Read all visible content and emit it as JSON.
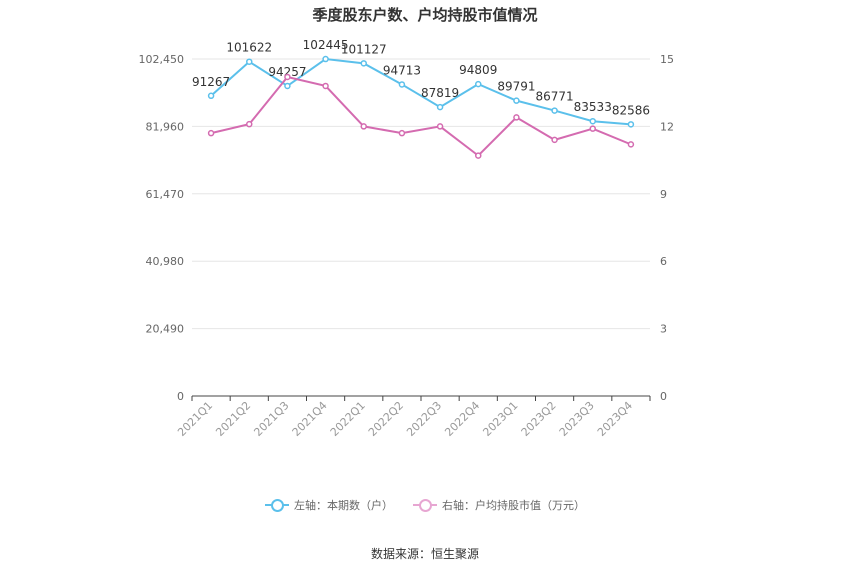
{
  "chart_data": {
    "type": "line",
    "title": "季度股东户数、户均持股市值情况",
    "categories": [
      "2021Q1",
      "2021Q2",
      "2021Q3",
      "2021Q4",
      "2022Q1",
      "2022Q2",
      "2022Q3",
      "2022Q4",
      "2023Q1",
      "2023Q2",
      "2023Q3",
      "2023Q4"
    ],
    "left_axis": {
      "ticks": [
        "0",
        "20,490",
        "40,980",
        "61,470",
        "81,960",
        "102,450"
      ],
      "ylim": [
        0,
        102450
      ]
    },
    "right_axis": {
      "ticks": [
        "0",
        "3",
        "6",
        "9",
        "12",
        "15"
      ],
      "ylim": [
        0,
        15
      ]
    },
    "series": [
      {
        "name": "左轴：本期数（户）",
        "axis": "left",
        "color": "#5bc0eb",
        "values": [
          91267,
          101622,
          94257,
          102445,
          101127,
          94713,
          87819,
          94809,
          89791,
          86771,
          83533,
          82586
        ],
        "labels": [
          "91267",
          "101622",
          "94257",
          "102445",
          "101127",
          "94713",
          "87819",
          "94809",
          "89791",
          "86771",
          "83533",
          "82586"
        ]
      },
      {
        "name": "右轴：户均持股市值（万元）",
        "axis": "right",
        "color": "#d46bb0",
        "values": [
          11.7,
          12.1,
          14.2,
          13.8,
          12.0,
          11.7,
          12.0,
          10.7,
          12.4,
          11.4,
          11.9,
          11.2
        ]
      }
    ],
    "grid": true,
    "legend_position": "bottom"
  },
  "source": "数据来源：恒生聚源"
}
